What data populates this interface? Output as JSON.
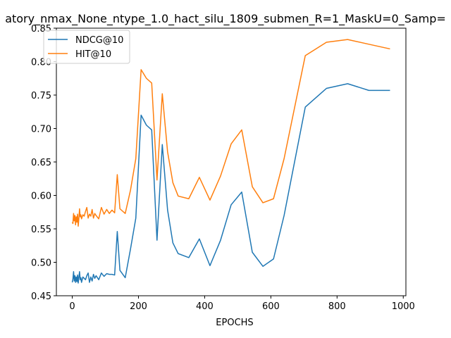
{
  "chart_data": {
    "type": "line",
    "title": "atory_nmax_None_ntype_1.0_hact_silu_1809_submen_R=1_MaskU=0_Samp=",
    "xlabel": "EPOCHS",
    "ylabel": "",
    "xlim": [
      -48,
      1008
    ],
    "ylim": [
      0.45,
      0.85
    ],
    "xticks": [
      0,
      200,
      400,
      600,
      800,
      1000
    ],
    "yticks": [
      0.45,
      0.5,
      0.55,
      0.6,
      0.65,
      0.7,
      0.75,
      0.8,
      0.85
    ],
    "grid": false,
    "legend_position": "top-left",
    "series": [
      {
        "name": "NDCG@10",
        "color": "#1f77b4",
        "points": [
          [
            0,
            0.47
          ],
          [
            2,
            0.475
          ],
          [
            4,
            0.486
          ],
          [
            6,
            0.472
          ],
          [
            8,
            0.48
          ],
          [
            10,
            0.47
          ],
          [
            12,
            0.478
          ],
          [
            14,
            0.471
          ],
          [
            16,
            0.481
          ],
          [
            18,
            0.469
          ],
          [
            20,
            0.478
          ],
          [
            22,
            0.486
          ],
          [
            24,
            0.474
          ],
          [
            26,
            0.477
          ],
          [
            28,
            0.47
          ],
          [
            32,
            0.478
          ],
          [
            36,
            0.476
          ],
          [
            40,
            0.474
          ],
          [
            44,
            0.48
          ],
          [
            48,
            0.484
          ],
          [
            52,
            0.47
          ],
          [
            56,
            0.478
          ],
          [
            60,
            0.472
          ],
          [
            64,
            0.482
          ],
          [
            68,
            0.476
          ],
          [
            72,
            0.48
          ],
          [
            80,
            0.474
          ],
          [
            88,
            0.484
          ],
          [
            96,
            0.479
          ],
          [
            104,
            0.483
          ],
          [
            112,
            0.482
          ],
          [
            120,
            0.482
          ],
          [
            128,
            0.481
          ],
          [
            136,
            0.546
          ],
          [
            144,
            0.488
          ],
          [
            160,
            0.477
          ],
          [
            176,
            0.52
          ],
          [
            192,
            0.566
          ],
          [
            208,
            0.72
          ],
          [
            224,
            0.705
          ],
          [
            240,
            0.698
          ],
          [
            256,
            0.533
          ],
          [
            272,
            0.676
          ],
          [
            288,
            0.578
          ],
          [
            304,
            0.529
          ],
          [
            320,
            0.513
          ],
          [
            352,
            0.507
          ],
          [
            384,
            0.535
          ],
          [
            416,
            0.495
          ],
          [
            448,
            0.533
          ],
          [
            480,
            0.586
          ],
          [
            512,
            0.605
          ],
          [
            544,
            0.515
          ],
          [
            576,
            0.494
          ],
          [
            608,
            0.505
          ],
          [
            640,
            0.57
          ],
          [
            704,
            0.732
          ],
          [
            768,
            0.76
          ],
          [
            832,
            0.767
          ],
          [
            896,
            0.757
          ],
          [
            960,
            0.757
          ]
        ]
      },
      {
        "name": "HIT@10",
        "color": "#ff7f0e",
        "points": [
          [
            0,
            0.56
          ],
          [
            2,
            0.558
          ],
          [
            4,
            0.573
          ],
          [
            6,
            0.562
          ],
          [
            8,
            0.57
          ],
          [
            10,
            0.556
          ],
          [
            12,
            0.568
          ],
          [
            14,
            0.56
          ],
          [
            16,
            0.572
          ],
          [
            18,
            0.554
          ],
          [
            20,
            0.566
          ],
          [
            22,
            0.58
          ],
          [
            24,
            0.568
          ],
          [
            26,
            0.571
          ],
          [
            28,
            0.565
          ],
          [
            32,
            0.571
          ],
          [
            36,
            0.569
          ],
          [
            40,
            0.576
          ],
          [
            44,
            0.582
          ],
          [
            48,
            0.566
          ],
          [
            52,
            0.572
          ],
          [
            56,
            0.569
          ],
          [
            60,
            0.579
          ],
          [
            64,
            0.566
          ],
          [
            68,
            0.573
          ],
          [
            72,
            0.57
          ],
          [
            80,
            0.565
          ],
          [
            88,
            0.582
          ],
          [
            96,
            0.572
          ],
          [
            104,
            0.579
          ],
          [
            112,
            0.573
          ],
          [
            120,
            0.578
          ],
          [
            128,
            0.574
          ],
          [
            136,
            0.631
          ],
          [
            144,
            0.58
          ],
          [
            160,
            0.573
          ],
          [
            176,
            0.608
          ],
          [
            192,
            0.655
          ],
          [
            208,
            0.788
          ],
          [
            224,
            0.775
          ],
          [
            240,
            0.768
          ],
          [
            256,
            0.623
          ],
          [
            272,
            0.752
          ],
          [
            288,
            0.665
          ],
          [
            304,
            0.619
          ],
          [
            320,
            0.599
          ],
          [
            352,
            0.595
          ],
          [
            384,
            0.627
          ],
          [
            416,
            0.593
          ],
          [
            448,
            0.629
          ],
          [
            480,
            0.677
          ],
          [
            512,
            0.698
          ],
          [
            544,
            0.613
          ],
          [
            576,
            0.589
          ],
          [
            608,
            0.595
          ],
          [
            640,
            0.655
          ],
          [
            704,
            0.809
          ],
          [
            768,
            0.829
          ],
          [
            832,
            0.833
          ],
          [
            896,
            0.826
          ],
          [
            960,
            0.819
          ]
        ]
      }
    ]
  }
}
